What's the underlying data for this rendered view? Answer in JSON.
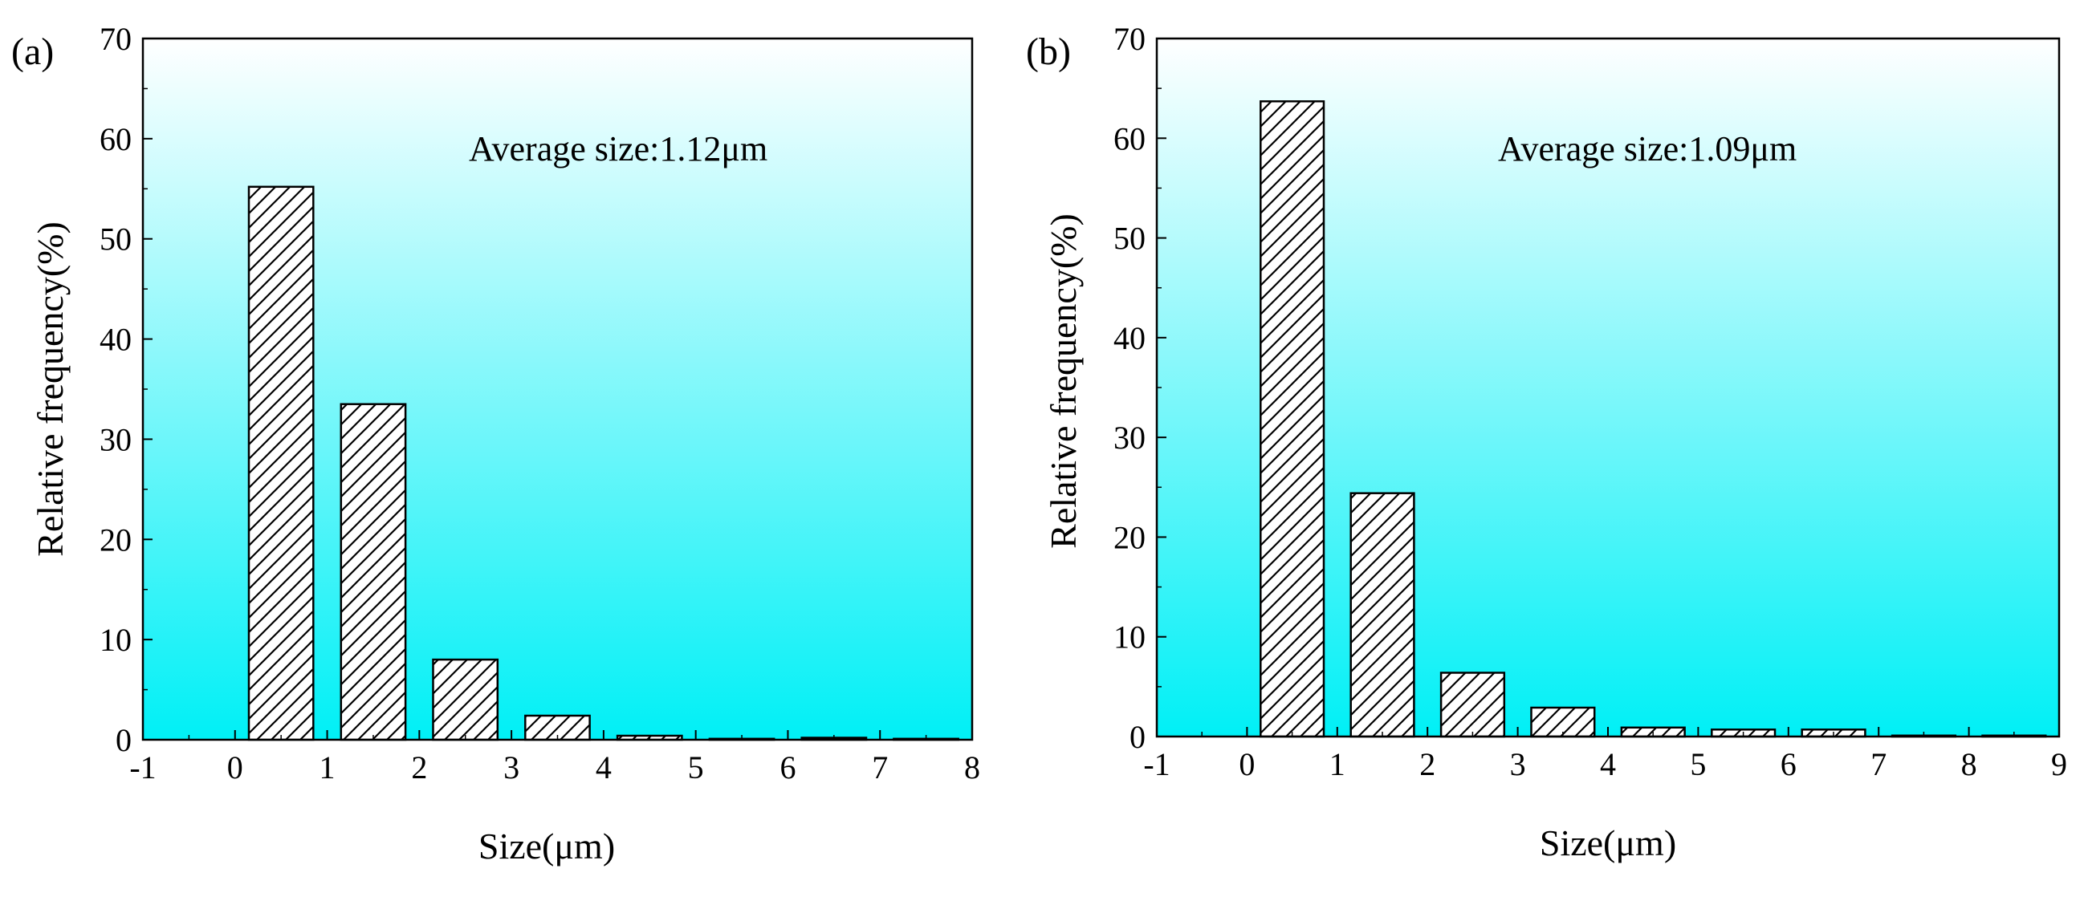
{
  "figure": {
    "panels": [
      "(a)",
      "(b)"
    ]
  },
  "colors": {
    "background_top": "#ffffff",
    "background_bottom": "#00f0f6",
    "bar_fill": "#ffffff",
    "bar_stroke": "#000000",
    "hatch": "#000000"
  },
  "chart_data": [
    {
      "type": "bar",
      "panel_label": "(a)",
      "title": "",
      "annotation": "Average size:1.12μm",
      "xlabel": "Size(μm)",
      "ylabel": "Relative frequency(%)",
      "xlim": [
        -1,
        8
      ],
      "ylim": [
        0,
        70
      ],
      "xticks": [
        -1,
        0,
        1,
        2,
        3,
        4,
        5,
        6,
        7,
        8
      ],
      "yticks": [
        0,
        10,
        20,
        30,
        40,
        50,
        60,
        70
      ],
      "bin_width": 1,
      "bar_width": 0.7,
      "bin_starts": [
        0,
        1,
        2,
        3,
        4,
        5,
        6,
        7
      ],
      "values": [
        55.2,
        33.5,
        8.0,
        2.4,
        0.4,
        0.1,
        0.2,
        0.1
      ],
      "pattern": "diagonal-hatch",
      "grid": false
    },
    {
      "type": "bar",
      "panel_label": "(b)",
      "title": "",
      "annotation": "Average size:1.09μm",
      "xlabel": "Size(μm)",
      "ylabel": "Relative frequency(%)",
      "xlim": [
        -1,
        9
      ],
      "ylim": [
        0,
        70
      ],
      "xticks": [
        -1,
        0,
        1,
        2,
        3,
        4,
        5,
        6,
        7,
        8,
        9
      ],
      "yticks": [
        0,
        10,
        20,
        30,
        40,
        50,
        60,
        70
      ],
      "bin_width": 1,
      "bar_width": 0.7,
      "bin_starts": [
        0,
        1,
        2,
        3,
        4,
        5,
        6,
        7,
        8
      ],
      "values": [
        63.7,
        24.4,
        6.4,
        2.9,
        0.9,
        0.7,
        0.7,
        0.1,
        0.1
      ],
      "pattern": "diagonal-hatch",
      "grid": false
    }
  ]
}
